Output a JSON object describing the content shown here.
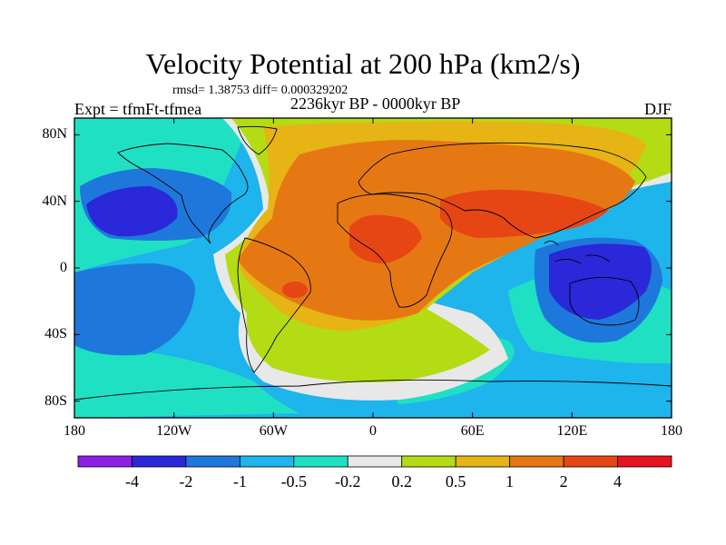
{
  "title": "Velocity Potential at 200 hPa (km2/s)",
  "stats": "rmsd= 1.38753 diff= 0.000329202",
  "experiment": "Expt = tfmFt-tfmea",
  "period": "2236kyr BP - 0000kyr BP",
  "season": "DJF",
  "map": {
    "lon_range": [
      -180,
      180
    ],
    "lat_range": [
      -90,
      90
    ],
    "lat_ticks": [
      {
        "value": 80,
        "label": "80N"
      },
      {
        "value": 40,
        "label": "40N"
      },
      {
        "value": 0,
        "label": "0"
      },
      {
        "value": -40,
        "label": "40S"
      },
      {
        "value": -80,
        "label": "80S"
      }
    ],
    "lon_ticks": [
      {
        "value": -180,
        "label": "180"
      },
      {
        "value": -120,
        "label": "120W"
      },
      {
        "value": -60,
        "label": "60W"
      },
      {
        "value": 0,
        "label": "0"
      },
      {
        "value": 60,
        "label": "60E"
      },
      {
        "value": 120,
        "label": "120E"
      },
      {
        "value": 180,
        "label": "180"
      }
    ]
  },
  "colorbar": {
    "colors": [
      "#8c1ee6",
      "#2a28d8",
      "#1e78dc",
      "#1eb4ec",
      "#20e0c4",
      "#e8e8e8",
      "#b4dc14",
      "#e6b414",
      "#e67814",
      "#e64614",
      "#e6141e"
    ],
    "labels": [
      "-4",
      "-2",
      "-1",
      "-0.5",
      "-0.2",
      "0.2",
      "0.5",
      "1",
      "2",
      "4"
    ]
  }
}
